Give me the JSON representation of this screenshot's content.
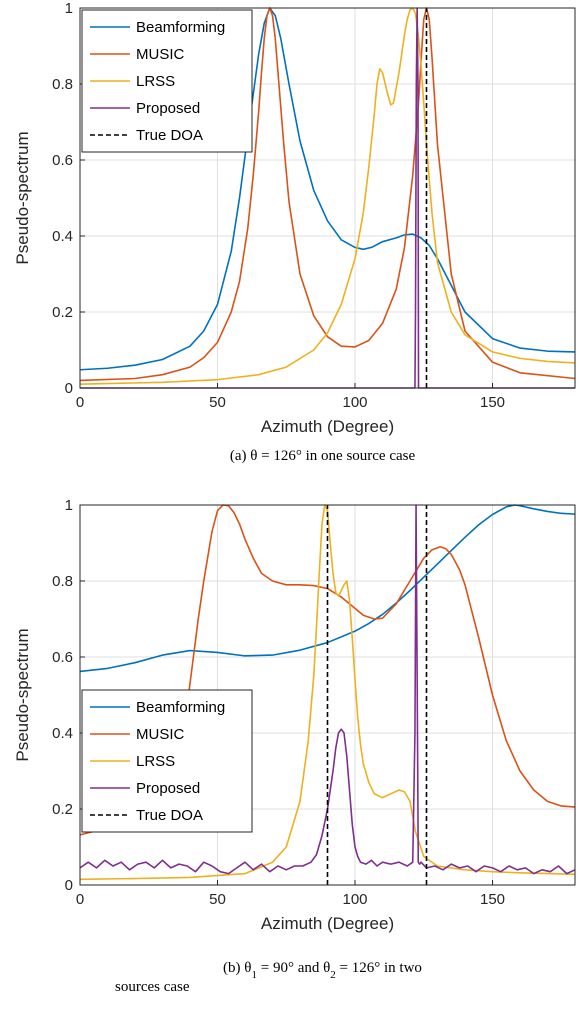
{
  "colors": {
    "Beamforming": "#0072BD",
    "MUSIC": "#D95319",
    "LRSS": "#EDB120",
    "Proposed": "#7E2F8E",
    "True DOA": "#000000"
  },
  "chart_data": [
    {
      "type": "line",
      "caption": "(a) θ = 126° in one source case",
      "xlabel": "Azimuth (Degree)",
      "ylabel": "Pseudo-spectrum",
      "xlim": [
        0,
        180
      ],
      "ylim": [
        0,
        1
      ],
      "xticks": [
        0,
        50,
        100,
        150
      ],
      "yticks": [
        0,
        0.2,
        0.4,
        0.6,
        0.8,
        1
      ],
      "ytick_labels": [
        "0",
        "0.2",
        "0.4",
        "0.6",
        "0.8",
        "1"
      ],
      "grid": true,
      "legend": {
        "position": "top-left",
        "entries": [
          "Beamforming",
          "MUSIC",
          "LRSS",
          "Proposed",
          "True DOA"
        ]
      },
      "series": [
        {
          "name": "Beamforming",
          "x": [
            0,
            10,
            20,
            30,
            40,
            45,
            50,
            55,
            58,
            62,
            65,
            67,
            69,
            71,
            73,
            76,
            80,
            85,
            90,
            95,
            100,
            103,
            106,
            110,
            115,
            118,
            121,
            124,
            127,
            130,
            135,
            140,
            150,
            160,
            170,
            180
          ],
          "y": [
            0.048,
            0.052,
            0.06,
            0.075,
            0.11,
            0.15,
            0.22,
            0.36,
            0.5,
            0.72,
            0.88,
            0.96,
            1.0,
            0.98,
            0.92,
            0.8,
            0.65,
            0.52,
            0.44,
            0.39,
            0.37,
            0.365,
            0.37,
            0.385,
            0.395,
            0.403,
            0.405,
            0.395,
            0.375,
            0.34,
            0.27,
            0.2,
            0.13,
            0.105,
            0.097,
            0.095
          ]
        },
        {
          "name": "MUSIC",
          "x": [
            0,
            20,
            30,
            40,
            45,
            50,
            55,
            58,
            61,
            63,
            65,
            66,
            67,
            68,
            69,
            70,
            71,
            72,
            74,
            76,
            80,
            85,
            90,
            95,
            100,
            105,
            110,
            115,
            118,
            121,
            123,
            124,
            125,
            126,
            127,
            128,
            130,
            135,
            140,
            150,
            160,
            180
          ],
          "y": [
            0.02,
            0.025,
            0.035,
            0.055,
            0.08,
            0.12,
            0.2,
            0.28,
            0.42,
            0.56,
            0.73,
            0.83,
            0.92,
            0.98,
            1.0,
            0.98,
            0.92,
            0.83,
            0.65,
            0.49,
            0.3,
            0.19,
            0.135,
            0.11,
            0.108,
            0.125,
            0.17,
            0.26,
            0.37,
            0.56,
            0.74,
            0.86,
            0.97,
            1.0,
            0.97,
            0.87,
            0.64,
            0.3,
            0.15,
            0.068,
            0.04,
            0.025
          ]
        },
        {
          "name": "LRSS",
          "x": [
            0,
            30,
            50,
            65,
            75,
            85,
            90,
            95,
            100,
            103,
            105,
            107,
            108,
            109,
            110,
            112,
            113,
            114,
            116,
            118,
            119,
            120,
            121,
            122,
            123,
            124,
            125,
            126,
            128,
            130,
            135,
            140,
            150,
            160,
            170,
            180
          ],
          "y": [
            0.01,
            0.015,
            0.022,
            0.035,
            0.055,
            0.1,
            0.145,
            0.22,
            0.34,
            0.46,
            0.58,
            0.72,
            0.8,
            0.84,
            0.83,
            0.77,
            0.745,
            0.75,
            0.83,
            0.93,
            0.97,
            0.995,
            1.0,
            0.985,
            0.93,
            0.85,
            0.75,
            0.64,
            0.46,
            0.33,
            0.2,
            0.14,
            0.095,
            0.078,
            0.07,
            0.066
          ]
        },
        {
          "name": "Proposed",
          "x": [
            0,
            121.8,
            122,
            122.3,
            122.6,
            122.9,
            123.1,
            180
          ],
          "y": [
            0,
            0,
            0.2,
            0.8,
            1.0,
            0.8,
            0,
            0
          ]
        },
        {
          "name": "True DOA",
          "x": [
            126,
            126
          ],
          "y": [
            0,
            1
          ]
        }
      ]
    },
    {
      "type": "line",
      "caption": "(b) θ1 = 90° and θ2 = 126° in two sources case",
      "xlabel": "Azimuth (Degree)",
      "ylabel": "Pseudo-spectrum",
      "xlim": [
        0,
        180
      ],
      "ylim": [
        0,
        1
      ],
      "xticks": [
        0,
        50,
        100,
        150
      ],
      "yticks": [
        0,
        0.2,
        0.4,
        0.6,
        0.8,
        1
      ],
      "ytick_labels": [
        "0",
        "0.2",
        "0.4",
        "0.6",
        "0.8",
        "1"
      ],
      "grid": true,
      "legend": {
        "position": "bottom-left",
        "entries": [
          "Beamforming",
          "MUSIC",
          "LRSS",
          "Proposed",
          "True DOA"
        ]
      },
      "series": [
        {
          "name": "Beamforming",
          "x": [
            0,
            10,
            20,
            30,
            40,
            50,
            60,
            70,
            80,
            90,
            100,
            105,
            110,
            115,
            120,
            125,
            130,
            135,
            140,
            145,
            150,
            155,
            158,
            160,
            165,
            170,
            175,
            180
          ],
          "y": [
            0.562,
            0.57,
            0.585,
            0.605,
            0.617,
            0.612,
            0.603,
            0.605,
            0.618,
            0.638,
            0.668,
            0.688,
            0.712,
            0.742,
            0.775,
            0.81,
            0.845,
            0.88,
            0.915,
            0.948,
            0.975,
            0.995,
            1.0,
            0.998,
            0.99,
            0.983,
            0.978,
            0.976
          ]
        },
        {
          "name": "MUSIC",
          "x": [
            0,
            10,
            20,
            30,
            35,
            38,
            40,
            43,
            45,
            48,
            50,
            52,
            54,
            56,
            58,
            60,
            63,
            66,
            70,
            75,
            80,
            85,
            90,
            95,
            100,
            103,
            107,
            110,
            115,
            120,
            125,
            128,
            131,
            133,
            135,
            138,
            140,
            145,
            150,
            155,
            160,
            165,
            170,
            175,
            180
          ],
          "y": [
            0.132,
            0.15,
            0.2,
            0.28,
            0.35,
            0.42,
            0.53,
            0.7,
            0.8,
            0.93,
            0.985,
            1.0,
            0.998,
            0.98,
            0.95,
            0.91,
            0.86,
            0.82,
            0.8,
            0.79,
            0.79,
            0.788,
            0.78,
            0.758,
            0.728,
            0.71,
            0.7,
            0.702,
            0.74,
            0.8,
            0.86,
            0.882,
            0.89,
            0.885,
            0.87,
            0.83,
            0.79,
            0.65,
            0.5,
            0.38,
            0.3,
            0.25,
            0.22,
            0.208,
            0.205
          ]
        },
        {
          "name": "LRSS",
          "x": [
            0,
            20,
            40,
            60,
            70,
            75,
            80,
            83,
            85,
            86,
            87,
            88,
            89,
            90,
            91,
            92,
            93,
            94,
            95,
            96,
            97,
            98,
            99,
            100,
            101,
            102,
            103,
            105,
            107,
            110,
            113,
            116,
            118,
            120,
            122,
            125,
            130,
            140,
            150,
            160,
            170,
            180
          ],
          "y": [
            0.015,
            0.017,
            0.02,
            0.03,
            0.06,
            0.1,
            0.22,
            0.38,
            0.55,
            0.68,
            0.82,
            0.95,
            1.0,
            0.985,
            0.9,
            0.82,
            0.77,
            0.76,
            0.775,
            0.79,
            0.8,
            0.75,
            0.65,
            0.54,
            0.44,
            0.37,
            0.32,
            0.27,
            0.24,
            0.23,
            0.24,
            0.25,
            0.245,
            0.22,
            0.14,
            0.075,
            0.05,
            0.04,
            0.035,
            0.032,
            0.03,
            0.028
          ]
        },
        {
          "name": "Proposed",
          "x": [
            0,
            3,
            6,
            9,
            12,
            15,
            18,
            21,
            24,
            27,
            30,
            33,
            36,
            39,
            42,
            45,
            48,
            51,
            54,
            57,
            60,
            63,
            66,
            69,
            72,
            75,
            78,
            81,
            84,
            86,
            88,
            90,
            91,
            92,
            93,
            94,
            95,
            96,
            97,
            98,
            99,
            100,
            101,
            102,
            104,
            106,
            108,
            110,
            113,
            116,
            119,
            121,
            121.8,
            122.2,
            122.6,
            123,
            123.5,
            124,
            126,
            129,
            132,
            135,
            138,
            141,
            144,
            147,
            150,
            153,
            156,
            159,
            162,
            165,
            168,
            171,
            174,
            177,
            180
          ],
          "y": [
            0.045,
            0.06,
            0.045,
            0.065,
            0.05,
            0.06,
            0.04,
            0.055,
            0.06,
            0.045,
            0.065,
            0.045,
            0.055,
            0.05,
            0.035,
            0.06,
            0.05,
            0.035,
            0.03,
            0.045,
            0.06,
            0.04,
            0.055,
            0.035,
            0.05,
            0.04,
            0.05,
            0.05,
            0.06,
            0.08,
            0.13,
            0.2,
            0.25,
            0.3,
            0.36,
            0.4,
            0.41,
            0.4,
            0.34,
            0.25,
            0.16,
            0.1,
            0.075,
            0.06,
            0.055,
            0.065,
            0.05,
            0.06,
            0.055,
            0.06,
            0.05,
            0.06,
            0.4,
            1.0,
            0.55,
            0.06,
            0.055,
            0.06,
            0.045,
            0.05,
            0.04,
            0.055,
            0.045,
            0.05,
            0.035,
            0.05,
            0.045,
            0.035,
            0.05,
            0.04,
            0.045,
            0.03,
            0.04,
            0.035,
            0.05,
            0.03,
            0.04
          ]
        },
        {
          "name": "True DOA",
          "x": [
            90,
            90
          ],
          "y": [
            0,
            1
          ]
        },
        {
          "name": "True DOA",
          "x": [
            126,
            126
          ],
          "y": [
            0,
            1
          ]
        }
      ]
    }
  ]
}
